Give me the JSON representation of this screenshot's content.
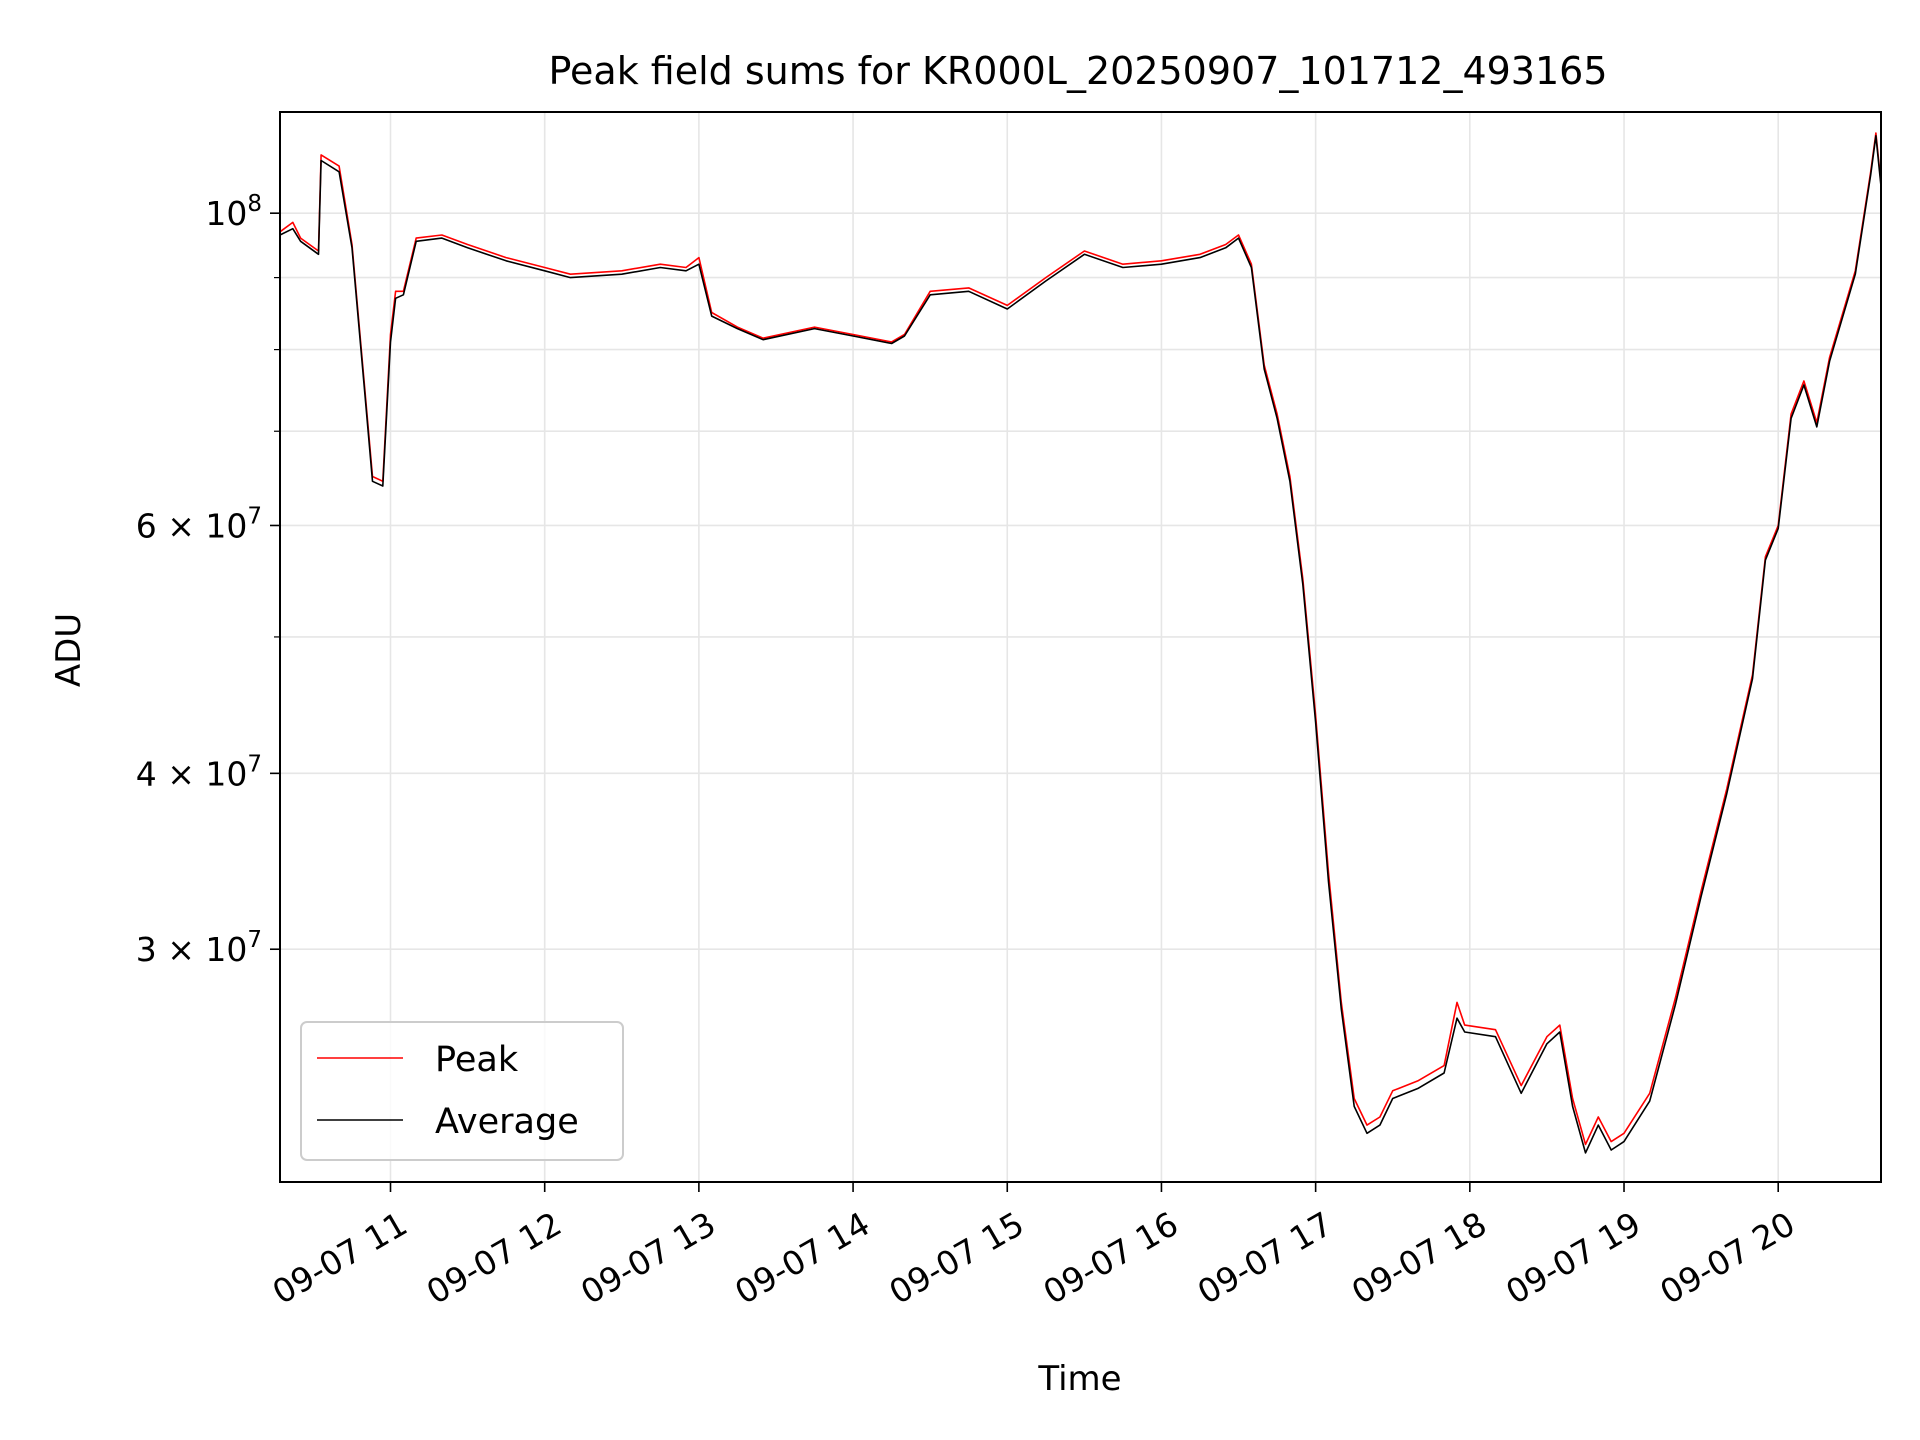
{
  "chart_data": {
    "type": "line",
    "title": "Peak field sums for KR000L_20250907_101712_493165",
    "xlabel": "Time",
    "ylabel": "ADU",
    "yscale": "log",
    "grid": true,
    "legend_position": "lower-left",
    "xlim": [
      "2025-09-07 10:17",
      "2025-09-07 20:40"
    ],
    "ylim": [
      20500000,
      118000000
    ],
    "x_ticks": [
      {
        "value": "2025-09-07 11:00",
        "label": "09-07 11"
      },
      {
        "value": "2025-09-07 12:00",
        "label": "09-07 12"
      },
      {
        "value": "2025-09-07 13:00",
        "label": "09-07 13"
      },
      {
        "value": "2025-09-07 14:00",
        "label": "09-07 14"
      },
      {
        "value": "2025-09-07 15:00",
        "label": "09-07 15"
      },
      {
        "value": "2025-09-07 16:00",
        "label": "09-07 16"
      },
      {
        "value": "2025-09-07 17:00",
        "label": "09-07 17"
      },
      {
        "value": "2025-09-07 18:00",
        "label": "09-07 18"
      },
      {
        "value": "2025-09-07 19:00",
        "label": "09-07 19"
      },
      {
        "value": "2025-09-07 20:00",
        "label": "09-07 20"
      }
    ],
    "y_major_ticks": [
      {
        "value": 30000000,
        "mantissa": "3",
        "base": "10",
        "exp": "7"
      },
      {
        "value": 40000000,
        "mantissa": "4",
        "base": "10",
        "exp": "7"
      },
      {
        "value": 60000000,
        "mantissa": "6",
        "base": "10",
        "exp": "7"
      },
      {
        "value": 100000000,
        "mantissa": "",
        "base": "10",
        "exp": "8"
      }
    ],
    "y_minor_gridlines": [
      50000000,
      70000000,
      80000000,
      90000000
    ],
    "series": [
      {
        "name": "Peak",
        "color": "#ff0000",
        "x": [
          "2025-09-07 10:17",
          "2025-09-07 10:22",
          "2025-09-07 10:25",
          "2025-09-07 10:32",
          "2025-09-07 10:33",
          "2025-09-07 10:40",
          "2025-09-07 10:45",
          "2025-09-07 10:50",
          "2025-09-07 10:53",
          "2025-09-07 10:57",
          "2025-09-07 11:00",
          "2025-09-07 11:02",
          "2025-09-07 11:05",
          "2025-09-07 11:10",
          "2025-09-07 11:20",
          "2025-09-07 11:30",
          "2025-09-07 11:45",
          "2025-09-07 12:00",
          "2025-09-07 12:10",
          "2025-09-07 12:30",
          "2025-09-07 12:45",
          "2025-09-07 12:55",
          "2025-09-07 13:00",
          "2025-09-07 13:05",
          "2025-09-07 13:15",
          "2025-09-07 13:25",
          "2025-09-07 13:45",
          "2025-09-07 14:00",
          "2025-09-07 14:15",
          "2025-09-07 14:20",
          "2025-09-07 14:30",
          "2025-09-07 14:45",
          "2025-09-07 15:00",
          "2025-09-07 15:15",
          "2025-09-07 15:30",
          "2025-09-07 15:45",
          "2025-09-07 16:00",
          "2025-09-07 16:15",
          "2025-09-07 16:25",
          "2025-09-07 16:30",
          "2025-09-07 16:35",
          "2025-09-07 16:40",
          "2025-09-07 16:45",
          "2025-09-07 16:50",
          "2025-09-07 16:55",
          "2025-09-07 17:00",
          "2025-09-07 17:05",
          "2025-09-07 17:10",
          "2025-09-07 17:15",
          "2025-09-07 17:20",
          "2025-09-07 17:25",
          "2025-09-07 17:30",
          "2025-09-07 17:40",
          "2025-09-07 17:50",
          "2025-09-07 17:55",
          "2025-09-07 17:58",
          "2025-09-07 18:10",
          "2025-09-07 18:20",
          "2025-09-07 18:30",
          "2025-09-07 18:35",
          "2025-09-07 18:40",
          "2025-09-07 18:45",
          "2025-09-07 18:50",
          "2025-09-07 18:55",
          "2025-09-07 19:00",
          "2025-09-07 19:10",
          "2025-09-07 19:20",
          "2025-09-07 19:30",
          "2025-09-07 19:40",
          "2025-09-07 19:50",
          "2025-09-07 19:55",
          "2025-09-07 20:00",
          "2025-09-07 20:05",
          "2025-09-07 20:10",
          "2025-09-07 20:15",
          "2025-09-07 20:20",
          "2025-09-07 20:30",
          "2025-09-07 20:36",
          "2025-09-07 20:38",
          "2025-09-07 20:40"
        ],
        "y": [
          97000000,
          98500000,
          96000000,
          94000000,
          110000000,
          108000000,
          95000000,
          75000000,
          65000000,
          64500000,
          82000000,
          88000000,
          88000000,
          96000000,
          96500000,
          95000000,
          93000000,
          91500000,
          90500000,
          91000000,
          92000000,
          91500000,
          93000000,
          85000000,
          83000000,
          81500000,
          83000000,
          82000000,
          81000000,
          82000000,
          88000000,
          88500000,
          86000000,
          90000000,
          94000000,
          92000000,
          92500000,
          93500000,
          95000000,
          96500000,
          92000000,
          78000000,
          72000000,
          65000000,
          55000000,
          44000000,
          34000000,
          27500000,
          23500000,
          22500000,
          22800000,
          23800000,
          24200000,
          24800000,
          27500000,
          26500000,
          26300000,
          24000000,
          26000000,
          26500000,
          23500000,
          21800000,
          22800000,
          21900000,
          22200000,
          23700000,
          27700000,
          33000000,
          39000000,
          47000000,
          57000000,
          60000000,
          72000000,
          76000000,
          71000000,
          79000000,
          91000000,
          107000000,
          114000000,
          105000000
        ]
      },
      {
        "name": "Average",
        "color": "#000000",
        "x": [
          "2025-09-07 10:17",
          "2025-09-07 10:22",
          "2025-09-07 10:25",
          "2025-09-07 10:32",
          "2025-09-07 10:33",
          "2025-09-07 10:40",
          "2025-09-07 10:45",
          "2025-09-07 10:50",
          "2025-09-07 10:53",
          "2025-09-07 10:57",
          "2025-09-07 11:00",
          "2025-09-07 11:02",
          "2025-09-07 11:05",
          "2025-09-07 11:10",
          "2025-09-07 11:20",
          "2025-09-07 11:30",
          "2025-09-07 11:45",
          "2025-09-07 12:00",
          "2025-09-07 12:10",
          "2025-09-07 12:30",
          "2025-09-07 12:45",
          "2025-09-07 12:55",
          "2025-09-07 13:00",
          "2025-09-07 13:05",
          "2025-09-07 13:15",
          "2025-09-07 13:25",
          "2025-09-07 13:45",
          "2025-09-07 14:00",
          "2025-09-07 14:15",
          "2025-09-07 14:20",
          "2025-09-07 14:30",
          "2025-09-07 14:45",
          "2025-09-07 15:00",
          "2025-09-07 15:15",
          "2025-09-07 15:30",
          "2025-09-07 15:45",
          "2025-09-07 16:00",
          "2025-09-07 16:15",
          "2025-09-07 16:25",
          "2025-09-07 16:30",
          "2025-09-07 16:35",
          "2025-09-07 16:40",
          "2025-09-07 16:45",
          "2025-09-07 16:50",
          "2025-09-07 16:55",
          "2025-09-07 17:00",
          "2025-09-07 17:05",
          "2025-09-07 17:10",
          "2025-09-07 17:15",
          "2025-09-07 17:20",
          "2025-09-07 17:25",
          "2025-09-07 17:30",
          "2025-09-07 17:40",
          "2025-09-07 17:50",
          "2025-09-07 17:55",
          "2025-09-07 17:58",
          "2025-09-07 18:10",
          "2025-09-07 18:20",
          "2025-09-07 18:30",
          "2025-09-07 18:35",
          "2025-09-07 18:40",
          "2025-09-07 18:45",
          "2025-09-07 18:50",
          "2025-09-07 18:55",
          "2025-09-07 19:00",
          "2025-09-07 19:10",
          "2025-09-07 19:20",
          "2025-09-07 19:30",
          "2025-09-07 19:40",
          "2025-09-07 19:50",
          "2025-09-07 19:55",
          "2025-09-07 20:00",
          "2025-09-07 20:05",
          "2025-09-07 20:10",
          "2025-09-07 20:15",
          "2025-09-07 20:20",
          "2025-09-07 20:30",
          "2025-09-07 20:36",
          "2025-09-07 20:38",
          "2025-09-07 20:40"
        ],
        "y": [
          96500000,
          97500000,
          95500000,
          93500000,
          109000000,
          107000000,
          94500000,
          74500000,
          64500000,
          64000000,
          81000000,
          87000000,
          87500000,
          95500000,
          96000000,
          94500000,
          92500000,
          91000000,
          90000000,
          90500000,
          91500000,
          91000000,
          92000000,
          84500000,
          82800000,
          81300000,
          82800000,
          81800000,
          80800000,
          81800000,
          87500000,
          88000000,
          85500000,
          89500000,
          93500000,
          91500000,
          92000000,
          93000000,
          94500000,
          96000000,
          91500000,
          77500000,
          71500000,
          64500000,
          54500000,
          43500000,
          33500000,
          27200000,
          23200000,
          22200000,
          22500000,
          23500000,
          23900000,
          24500000,
          26800000,
          26200000,
          26000000,
          23700000,
          25700000,
          26200000,
          23200000,
          21500000,
          22500000,
          21600000,
          21900000,
          23400000,
          27400000,
          32700000,
          38700000,
          46700000,
          56700000,
          59700000,
          71500000,
          75500000,
          70500000,
          78500000,
          90500000,
          106500000,
          113500000,
          104500000
        ]
      }
    ]
  }
}
